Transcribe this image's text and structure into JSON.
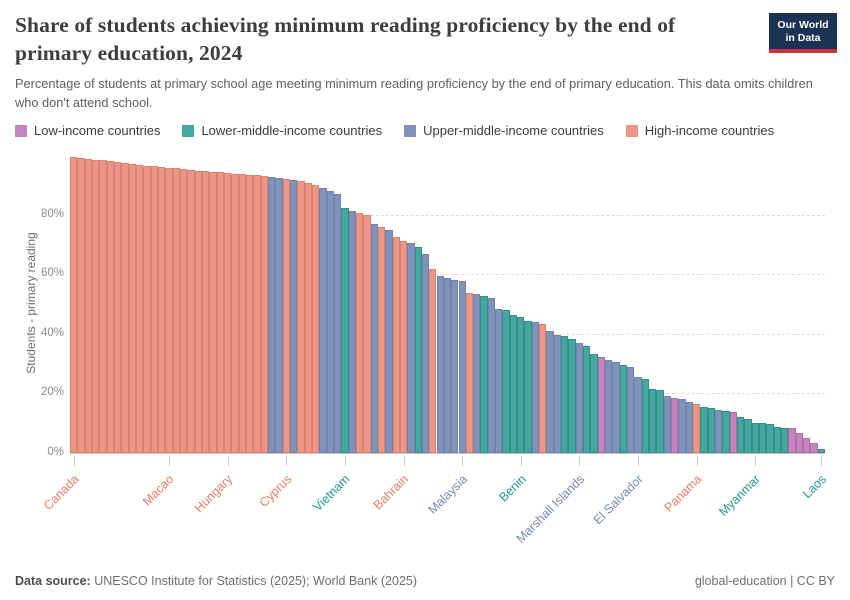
{
  "header": {
    "title": "Share of students achieving minimum reading proficiency by the end of primary education, 2024",
    "subtitle": "Percentage of students at primary school age meeting minimum reading proficiency by the end of primary education. This data omits children who don't attend school.",
    "logo": {
      "line1": "Our World",
      "line2": "in Data",
      "bg_color": "#1b3455",
      "accent_color": "#cf2e41"
    }
  },
  "legend": {
    "items": [
      {
        "key": "L",
        "label": "Low-income countries"
      },
      {
        "key": "M",
        "label": "Lower-middle-income countries"
      },
      {
        "key": "U",
        "label": "Upper-middle-income countries"
      },
      {
        "key": "H",
        "label": "High-income countries"
      }
    ]
  },
  "chart_data": {
    "type": "bar",
    "title": "Share of students achieving minimum reading proficiency by the end of primary education, 2024",
    "ylabel": "Students - primary reading",
    "xlabel": "",
    "ylim": [
      0,
      100
    ],
    "grid": true,
    "legend_position": "top",
    "yticks": [
      {
        "value": 0,
        "label": "0%"
      },
      {
        "value": 20,
        "label": "20%"
      },
      {
        "value": 40,
        "label": "40%"
      },
      {
        "value": 60,
        "label": "60%"
      },
      {
        "value": 80,
        "label": "80%"
      }
    ],
    "color_groups": {
      "L": {
        "name": "Low-income countries",
        "fill": "#C286BD",
        "stroke": "#AE6FA9",
        "text": "#C472BB"
      },
      "M": {
        "name": "Lower-middle-income countries",
        "fill": "#44A8A1",
        "stroke": "#358F89",
        "text": "#21998D"
      },
      "U": {
        "name": "Upper-middle-income countries",
        "fill": "#7F93BA",
        "stroke": "#6F83AC",
        "text": "#7588B7"
      },
      "H": {
        "name": "High-income countries",
        "fill": "#EE9685",
        "stroke": "#DD8170",
        "text": "#ED7C66"
      }
    },
    "income_sequence": "HHHHHHHHHHHHHHHHHHHHHHHHHHHUUHUHHHUUUMUHHUHUHHUMUHUUUUHUMUUMMMMUHUUMMUMMLUUMUUMMMULUUHMMUMLMMMMMMMLLLLM",
    "values": [
      99.2,
      99.0,
      98.8,
      98.5,
      98.2,
      97.9,
      97.6,
      97.3,
      97.0,
      96.7,
      96.4,
      96.2,
      96.0,
      95.8,
      95.5,
      95.2,
      95.0,
      94.8,
      94.6,
      94.4,
      94.2,
      94.0,
      93.8,
      93.6,
      93.4,
      93.2,
      93.0,
      92.7,
      92.4,
      92.1,
      91.7,
      91.2,
      90.6,
      89.8,
      88.8,
      87.8,
      86.8,
      82.3,
      81.2,
      80.5,
      79.9,
      76.8,
      75.8,
      75.0,
      72.4,
      71.2,
      70.5,
      69.3,
      66.9,
      61.8,
      59.5,
      58.8,
      58.2,
      57.6,
      53.8,
      53.3,
      52.6,
      52.1,
      48.4,
      48.0,
      46.4,
      45.6,
      44.4,
      44.0,
      43.4,
      41.0,
      39.7,
      39.3,
      38.3,
      37.0,
      35.8,
      33.3,
      32.3,
      31.3,
      30.7,
      29.6,
      29.0,
      25.4,
      25.0,
      21.6,
      21.2,
      19.0,
      18.6,
      18.0,
      17.2,
      16.6,
      15.3,
      15.0,
      14.6,
      14.0,
      13.8,
      12.1,
      11.3,
      10.1,
      10.0,
      9.8,
      8.8,
      8.5,
      8.3,
      6.6,
      5.0,
      3.3,
      1.5
    ],
    "x_tick_labels": [
      {
        "index": 0,
        "label": "Canada"
      },
      {
        "index": 13,
        "label": "Macao"
      },
      {
        "index": 21,
        "label": "Hungary"
      },
      {
        "index": 29,
        "label": "Cyprus"
      },
      {
        "index": 37,
        "label": "Vietnam"
      },
      {
        "index": 45,
        "label": "Bahrain"
      },
      {
        "index": 53,
        "label": "Malaysia"
      },
      {
        "index": 61,
        "label": "Benin"
      },
      {
        "index": 69,
        "label": "Marshall Islands"
      },
      {
        "index": 77,
        "label": "El Salvador"
      },
      {
        "index": 85,
        "label": "Panama"
      },
      {
        "index": 93,
        "label": "Myanmar"
      },
      {
        "index": 102,
        "label": "Laos"
      }
    ]
  },
  "footer": {
    "source_label": "Data source:",
    "source_text": " UNESCO Institute for Statistics (2025); World Bank (2025)",
    "license": "global-education | CC BY"
  }
}
